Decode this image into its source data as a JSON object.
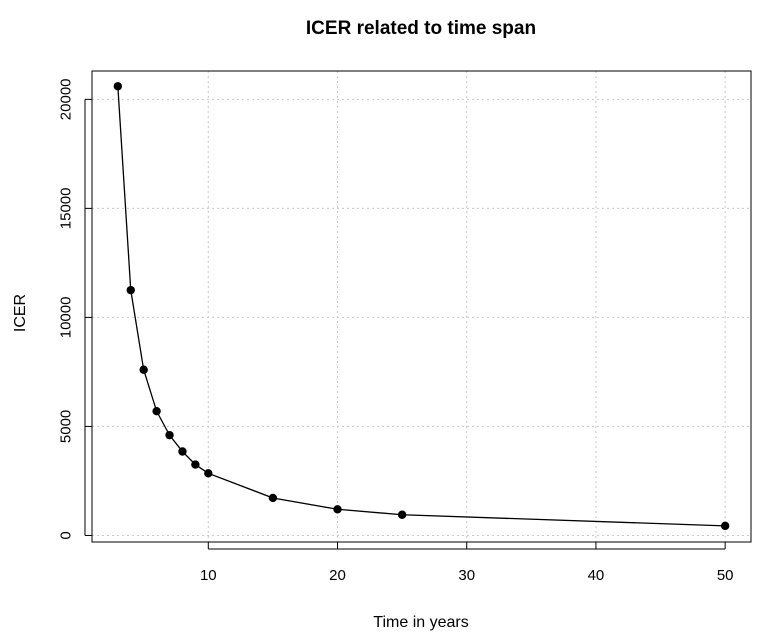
{
  "chart_data": {
    "type": "line",
    "title": "ICER related to time span",
    "xlabel": "Time in years",
    "ylabel": "ICER",
    "xlim": [
      1,
      52
    ],
    "ylim": [
      -300,
      21300
    ],
    "x_ticks": [
      "10",
      "20",
      "30",
      "40",
      "50"
    ],
    "y_ticks": [
      "0",
      "5000",
      "10000",
      "15000",
      "20000"
    ],
    "grid": true,
    "grid_style": "dotted",
    "marker": "filled-circle",
    "line_color": "#000000",
    "series": [
      {
        "x": [
          3,
          4,
          5,
          6,
          7,
          8,
          9,
          10,
          15,
          20,
          25,
          50
        ],
        "y": [
          20600,
          11250,
          7600,
          5700,
          4600,
          3850,
          3250,
          2850,
          1720,
          1200,
          950,
          440
        ]
      }
    ]
  }
}
